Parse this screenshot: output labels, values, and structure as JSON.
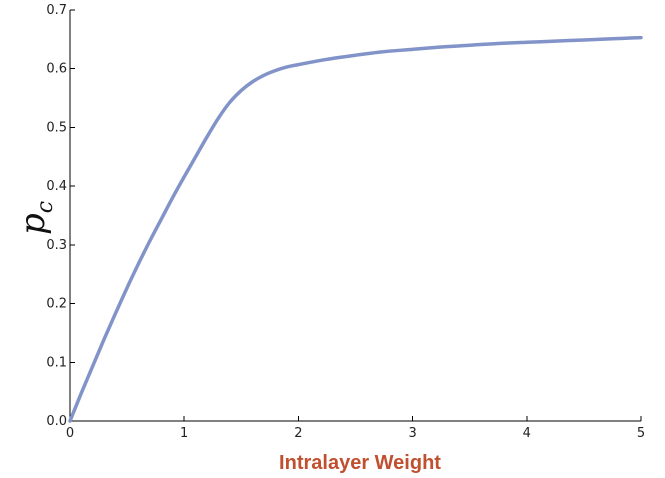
{
  "chart_data": {
    "type": "line",
    "title": "",
    "xlabel": "Intralayer Weight",
    "ylabel": "p",
    "ylabel_subscript": "c",
    "xlim": [
      0,
      5
    ],
    "ylim": [
      0.0,
      0.7
    ],
    "x_ticks": [
      0,
      1,
      2,
      3,
      4,
      5
    ],
    "x_tick_labels": [
      "0",
      "1",
      "2",
      "3",
      "4",
      "5"
    ],
    "y_ticks": [
      0.0,
      0.1,
      0.2,
      0.3,
      0.4,
      0.5,
      0.6,
      0.7
    ],
    "y_tick_labels": [
      "0.0",
      "0.1",
      "0.2",
      "0.3",
      "0.4",
      "0.5",
      "0.6",
      "0.7"
    ],
    "grid": false,
    "legend": "none",
    "series": [
      {
        "color": "#8193c8",
        "x": [
          0,
          0.1,
          0.2,
          0.3,
          0.4,
          0.5,
          0.6,
          0.7,
          0.8,
          0.9,
          1.0,
          1.1,
          1.2,
          1.3,
          1.4,
          1.5,
          1.6,
          1.7,
          1.8,
          1.9,
          2.0,
          2.25,
          2.5,
          2.75,
          3.0,
          3.25,
          3.5,
          3.75,
          4.0,
          4.25,
          4.5,
          4.75,
          5.0
        ],
        "values": [
          0.0,
          0.048,
          0.094,
          0.14,
          0.184,
          0.227,
          0.268,
          0.307,
          0.344,
          0.381,
          0.416,
          0.45,
          0.484,
          0.516,
          0.543,
          0.563,
          0.578,
          0.589,
          0.597,
          0.603,
          0.607,
          0.616,
          0.623,
          0.629,
          0.633,
          0.637,
          0.64,
          0.643,
          0.645,
          0.647,
          0.649,
          0.651,
          0.653
        ]
      }
    ]
  }
}
